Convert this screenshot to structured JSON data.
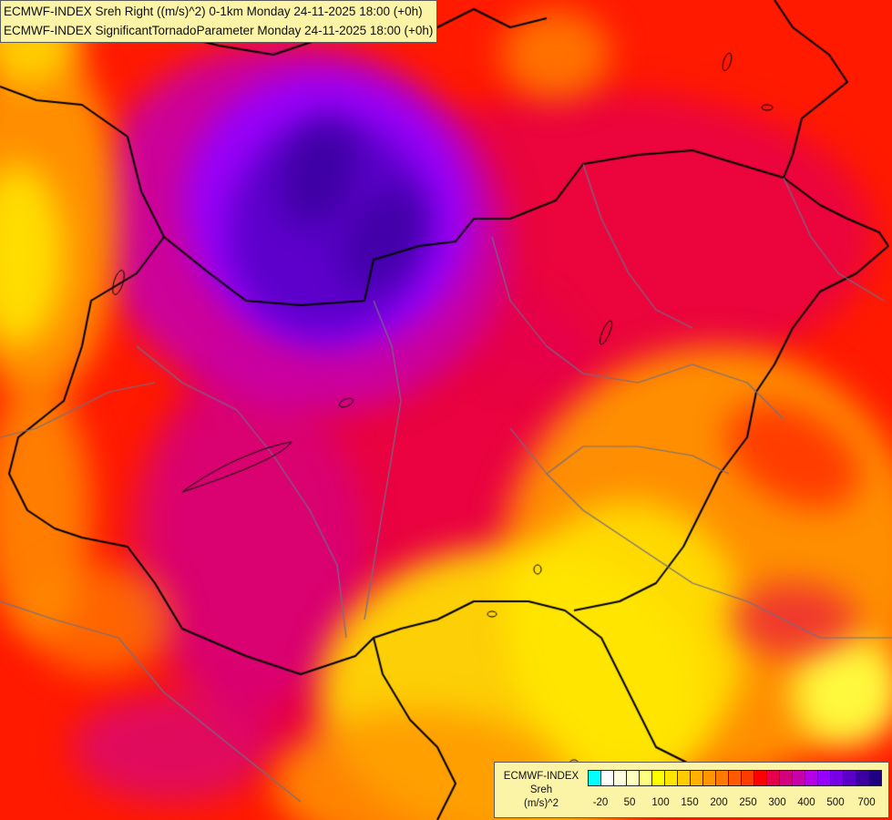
{
  "title": {
    "line1": "ECMWF-INDEX Sreh Right ((m/s)^2) 0-1km Monday 24-11-2025 18:00 (+0h)",
    "line2": "ECMWF-INDEX SignificantTornadoParameter Monday 24-11-2025 18:00 (+0h)"
  },
  "legend": {
    "model": "ECMWF-INDEX",
    "parameter": "Sreh",
    "unit": "(m/s)^2",
    "colors": [
      "#00ffff",
      "#ffffff",
      "#ffffe0",
      "#ffffc0",
      "#ffff80",
      "#ffff00",
      "#ffe600",
      "#ffcc00",
      "#ffb000",
      "#ff9600",
      "#ff7800",
      "#ff5a00",
      "#ff3c00",
      "#ff0000",
      "#e6004b",
      "#d2007d",
      "#c800aa",
      "#b400e6",
      "#9600ff",
      "#7800e6",
      "#5a00c8",
      "#3c00a0",
      "#1e0080"
    ],
    "tick_labels": [
      "-20",
      "50",
      "100",
      "150",
      "200",
      "250",
      "300",
      "400",
      "500",
      "700"
    ]
  },
  "map": {
    "colors": {
      "low_yellow": "#ffe600",
      "orange": "#ff9600",
      "red": "#ff1a00",
      "crimson": "#e6004b",
      "magenta": "#c800aa",
      "violet": "#9600ff",
      "indigo": "#5a00c8",
      "deep": "#3c00a0",
      "border": "#000000",
      "river": "#6f6f88"
    }
  }
}
